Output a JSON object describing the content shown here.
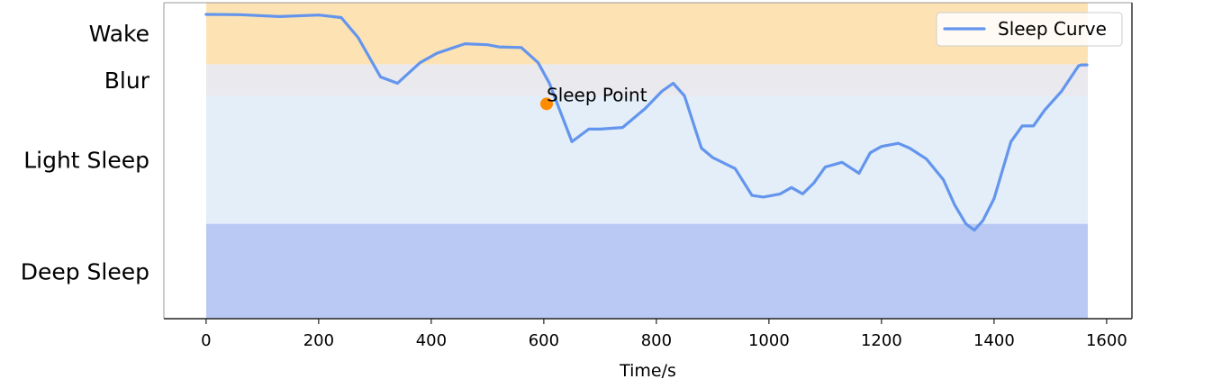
{
  "chart_data": {
    "type": "line",
    "xlabel": "Time/s",
    "xlim": [
      -75,
      1645
    ],
    "ylim": [
      0,
      1
    ],
    "x_ticks": [
      0,
      200,
      400,
      600,
      800,
      1000,
      1200,
      1400,
      1600
    ],
    "grid": false,
    "legend_position": "top-right",
    "bands": [
      {
        "label": "Wake",
        "y_min": 0.805,
        "y_max": 1.0,
        "color": "#fde3b4"
      },
      {
        "label": "Blur",
        "y_min": 0.705,
        "y_max": 0.805,
        "color": "#e9e9ee"
      },
      {
        "label": "Light Sleep",
        "y_min": 0.3,
        "y_max": 0.705,
        "color": "#e3eef8"
      },
      {
        "label": "Deep Sleep",
        "y_min": 0.0,
        "y_max": 0.3,
        "color": "#b9c9f3"
      }
    ],
    "band_labels": [
      "Wake",
      "Blur",
      "Light Sleep",
      "Deep Sleep"
    ],
    "series": [
      {
        "name": "Sleep Curve",
        "color": "#6495ed",
        "x": [
          0,
          60,
          130,
          200,
          240,
          270,
          310,
          340,
          380,
          410,
          440,
          460,
          500,
          520,
          560,
          590,
          610,
          650,
          680,
          700,
          740,
          780,
          810,
          830,
          850,
          880,
          900,
          940,
          970,
          990,
          1020,
          1040,
          1060,
          1080,
          1100,
          1130,
          1160,
          1180,
          1200,
          1230,
          1250,
          1280,
          1310,
          1330,
          1350,
          1365,
          1380,
          1400,
          1430,
          1450,
          1470,
          1490,
          1520,
          1550,
          1555,
          1565
        ],
        "y": [
          0.963,
          0.962,
          0.956,
          0.961,
          0.953,
          0.89,
          0.765,
          0.745,
          0.81,
          0.84,
          0.858,
          0.87,
          0.867,
          0.86,
          0.858,
          0.81,
          0.745,
          0.56,
          0.6,
          0.6,
          0.605,
          0.665,
          0.72,
          0.745,
          0.705,
          0.54,
          0.51,
          0.475,
          0.39,
          0.385,
          0.395,
          0.415,
          0.395,
          0.43,
          0.48,
          0.495,
          0.46,
          0.525,
          0.545,
          0.555,
          0.54,
          0.505,
          0.44,
          0.36,
          0.3,
          0.28,
          0.31,
          0.38,
          0.56,
          0.61,
          0.61,
          0.66,
          0.72,
          0.8,
          0.803,
          0.803
        ]
      }
    ],
    "annotations": [
      {
        "label": "Sleep Point",
        "x": 605,
        "y": 0.68,
        "marker_color": "#ff8c00"
      }
    ]
  }
}
